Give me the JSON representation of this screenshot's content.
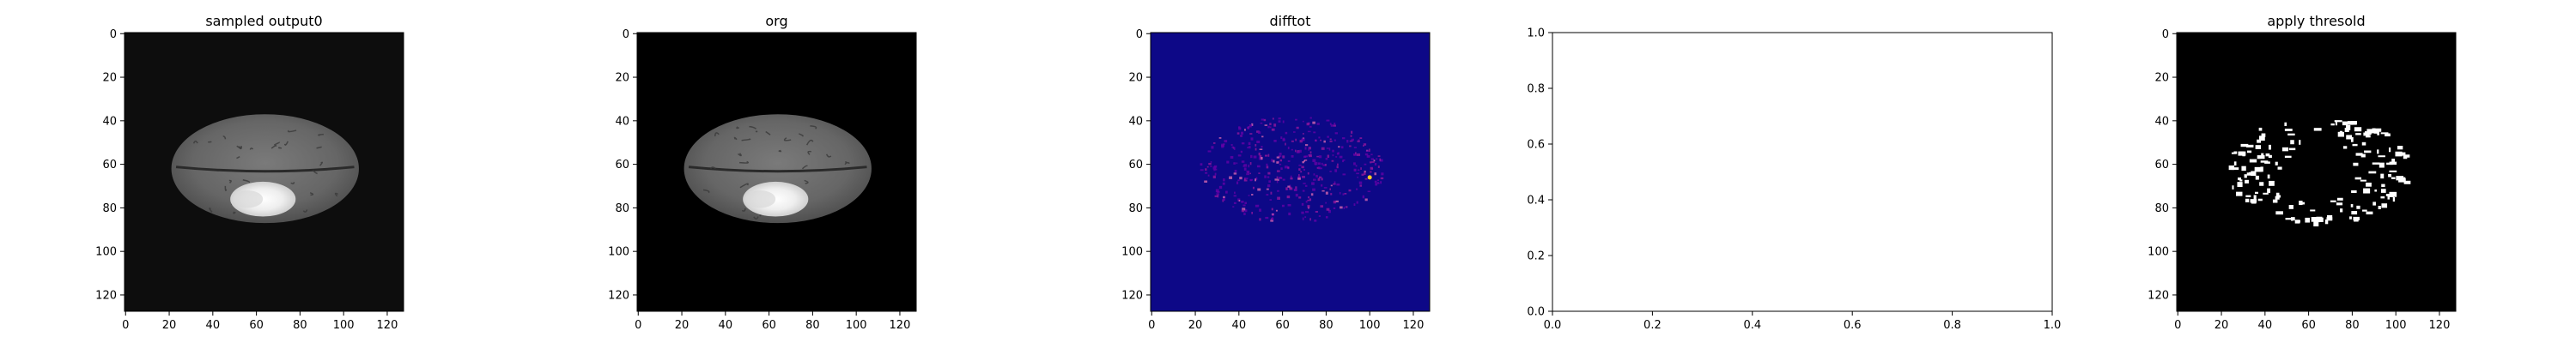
{
  "chart_data": [
    {
      "type": "heatmap",
      "title": "sampled output0",
      "colormap": "gray",
      "background_color": "#0d0d0d",
      "xlim": [
        0,
        127
      ],
      "ylim": [
        127,
        0
      ],
      "xticks": [
        0,
        20,
        40,
        60,
        80,
        100,
        120
      ],
      "yticks": [
        0,
        20,
        40,
        60,
        80,
        100,
        120
      ],
      "content": "brain-slice",
      "lesion": true
    },
    {
      "type": "heatmap",
      "title": "org",
      "colormap": "gray",
      "background_color": "#000000",
      "xlim": [
        0,
        127
      ],
      "ylim": [
        127,
        0
      ],
      "xticks": [
        0,
        20,
        40,
        60,
        80,
        100,
        120
      ],
      "yticks": [
        0,
        20,
        40,
        60,
        80,
        100,
        120
      ],
      "content": "brain-slice",
      "lesion": true
    },
    {
      "type": "heatmap",
      "title": "difftot",
      "colormap": "plasma",
      "background_color": "#0d0887",
      "xlim": [
        0,
        127
      ],
      "ylim": [
        127,
        0
      ],
      "xticks": [
        0,
        20,
        40,
        60,
        80,
        100,
        120
      ],
      "yticks": [
        0,
        20,
        40,
        60,
        80,
        100,
        120
      ],
      "content": "difference-map"
    },
    {
      "type": "scatter",
      "title": "",
      "empty": true,
      "xlim": [
        0,
        1
      ],
      "ylim": [
        0,
        1
      ],
      "xticks": [
        "0.0",
        "0.2",
        "0.4",
        "0.6",
        "0.8",
        "1.0"
      ],
      "yticks": [
        "0.0",
        "0.2",
        "0.4",
        "0.6",
        "0.8",
        "1.0"
      ]
    },
    {
      "type": "heatmap",
      "title": "apply thresold",
      "colormap": "binary",
      "background_color": "#000000",
      "xlim": [
        0,
        127
      ],
      "ylim": [
        127,
        0
      ],
      "xticks": [
        0,
        20,
        40,
        60,
        80,
        100,
        120
      ],
      "yticks": [
        0,
        20,
        40,
        60,
        80,
        100,
        120
      ],
      "content": "threshold-mask"
    }
  ]
}
